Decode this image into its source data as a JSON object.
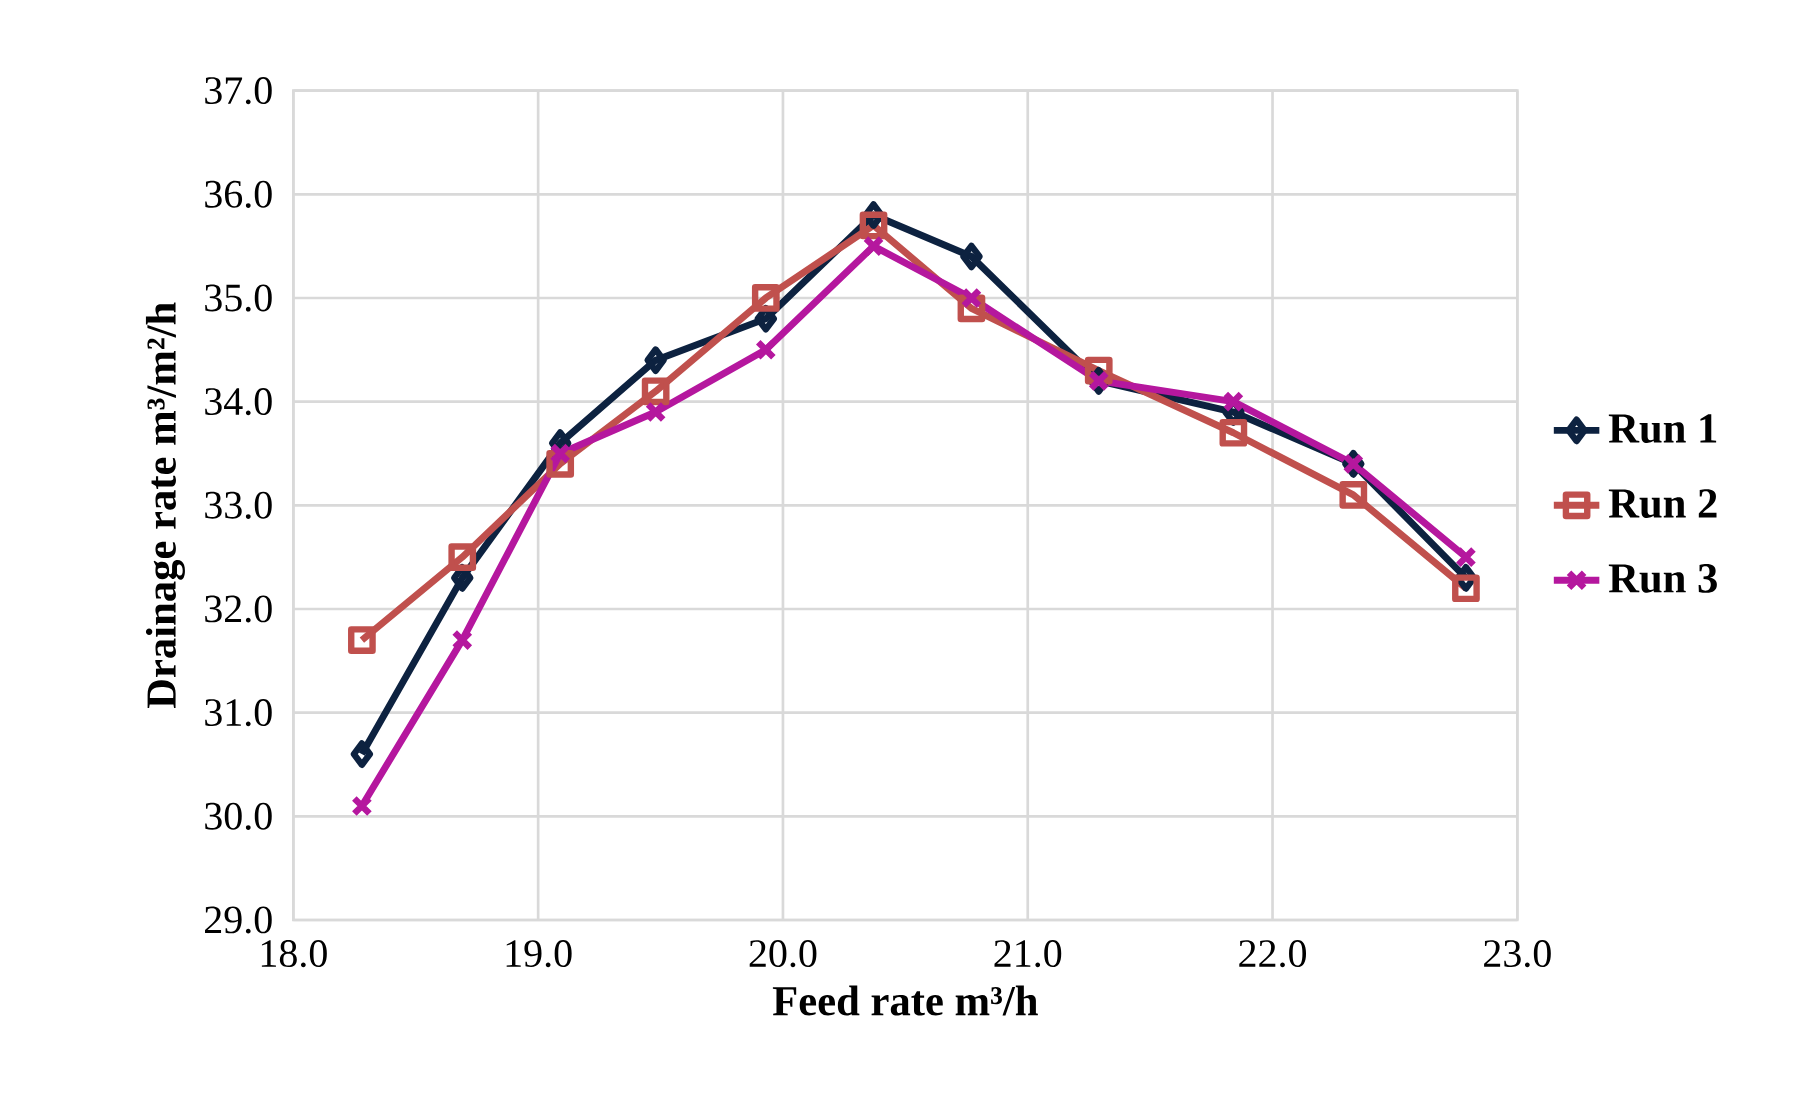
{
  "chart_data": {
    "type": "line",
    "xlabel": "Feed rate m³/h",
    "ylabel": "Drainage  rate m³/m²/h",
    "xlim": [
      18.0,
      23.0
    ],
    "ylim": [
      29.0,
      37.0
    ],
    "xticks": [
      {
        "value": 18,
        "label": "18.0"
      },
      {
        "value": 19,
        "label": "19.0"
      },
      {
        "value": 20,
        "label": "20.0"
      },
      {
        "value": 21,
        "label": "21.0"
      },
      {
        "value": 22,
        "label": "22.0"
      },
      {
        "value": 23,
        "label": "23.0"
      }
    ],
    "yticks": [
      {
        "value": 29,
        "label": "29.0"
      },
      {
        "value": 30,
        "label": "30.0"
      },
      {
        "value": 31,
        "label": "31.0"
      },
      {
        "value": 32,
        "label": "32.0"
      },
      {
        "value": 33,
        "label": "33.0"
      },
      {
        "value": 34,
        "label": "34.0"
      },
      {
        "value": 35,
        "label": "35.0"
      },
      {
        "value": 36,
        "label": "36.0"
      },
      {
        "value": 37,
        "label": "37.0"
      }
    ],
    "x": [
      18.28,
      18.69,
      19.09,
      19.48,
      19.93,
      20.37,
      20.77,
      21.29,
      21.84,
      22.33,
      22.79
    ],
    "grid": true,
    "legend": "right",
    "line_style": "solid",
    "series": [
      {
        "name": "Run 1",
        "color": "#0d2240",
        "marker": "diamond",
        "values": [
          30.6,
          32.3,
          33.6,
          34.4,
          34.8,
          35.8,
          35.4,
          34.2,
          33.9,
          33.4,
          32.3
        ]
      },
      {
        "name": "Run 2",
        "color": "#c0504d",
        "marker": "square",
        "values": [
          31.7,
          32.5,
          33.4,
          34.1,
          35.0,
          35.7,
          34.9,
          34.3,
          33.7,
          33.1,
          32.2
        ]
      },
      {
        "name": "Run 3",
        "color": "#b5179e",
        "marker": "cross",
        "values": [
          30.1,
          31.7,
          33.5,
          33.9,
          34.5,
          35.5,
          35.0,
          34.2,
          34.0,
          33.4,
          32.5
        ]
      }
    ]
  }
}
